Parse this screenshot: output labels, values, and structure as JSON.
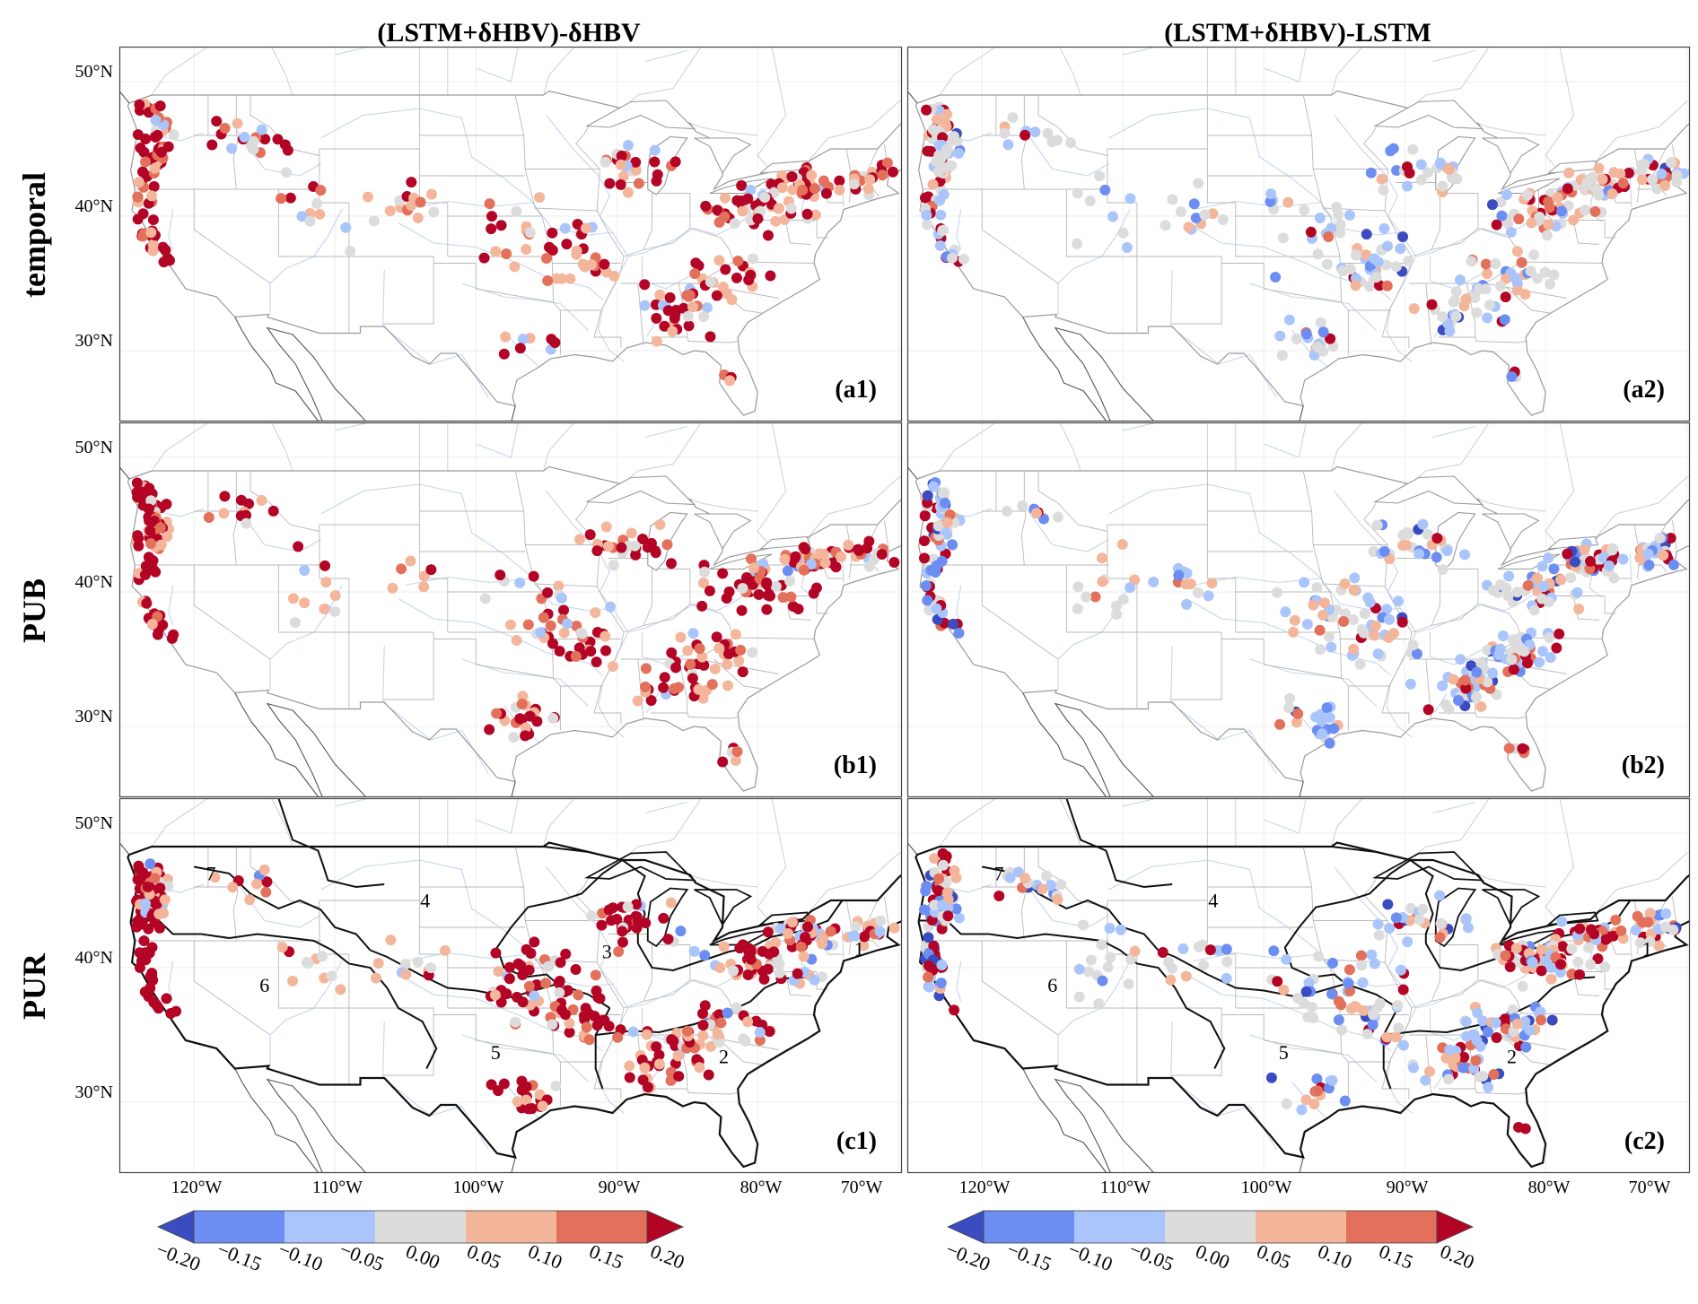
{
  "columns": [
    "(LSTM+δHBV)-δHBV",
    "(LSTM+δHBV)-LSTM"
  ],
  "rows": [
    "temporal",
    "PUB",
    "PUR"
  ],
  "panels": [
    {
      "label": "(a1)",
      "row": 0,
      "col": 0,
      "theme": "a1"
    },
    {
      "label": "(a2)",
      "row": 0,
      "col": 1,
      "theme": "a2"
    },
    {
      "label": "(b1)",
      "row": 1,
      "col": 0,
      "theme": "b1"
    },
    {
      "label": "(b2)",
      "row": 1,
      "col": 1,
      "theme": "b2"
    },
    {
      "label": "(c1)",
      "row": 2,
      "col": 0,
      "theme": "c1"
    },
    {
      "label": "(c2)",
      "row": 2,
      "col": 1,
      "theme": "c2"
    }
  ],
  "lat_ticks": [
    "50°N",
    "40°N",
    "30°N"
  ],
  "lon_ticks": [
    "120°W",
    "110°W",
    "100°W",
    "90°W",
    "80°W",
    "70°W"
  ],
  "region_numbers": {
    "c1": [
      "7",
      "4",
      "3",
      "6",
      "5",
      "2",
      "1"
    ],
    "c2": [
      "7",
      "4",
      "6",
      "5",
      "2",
      "1"
    ]
  },
  "colorbar": {
    "ticks": [
      "−0.20",
      "−0.15",
      "−0.10",
      "−0.05",
      "0.00",
      "0.05",
      "0.10",
      "0.15",
      "0.20"
    ],
    "colors": [
      "#3a4cc0",
      "#6c8ef2",
      "#a9c5fb",
      "#dddcdc",
      "#f4b69b",
      "#e3705a",
      "#b40426"
    ]
  }
}
